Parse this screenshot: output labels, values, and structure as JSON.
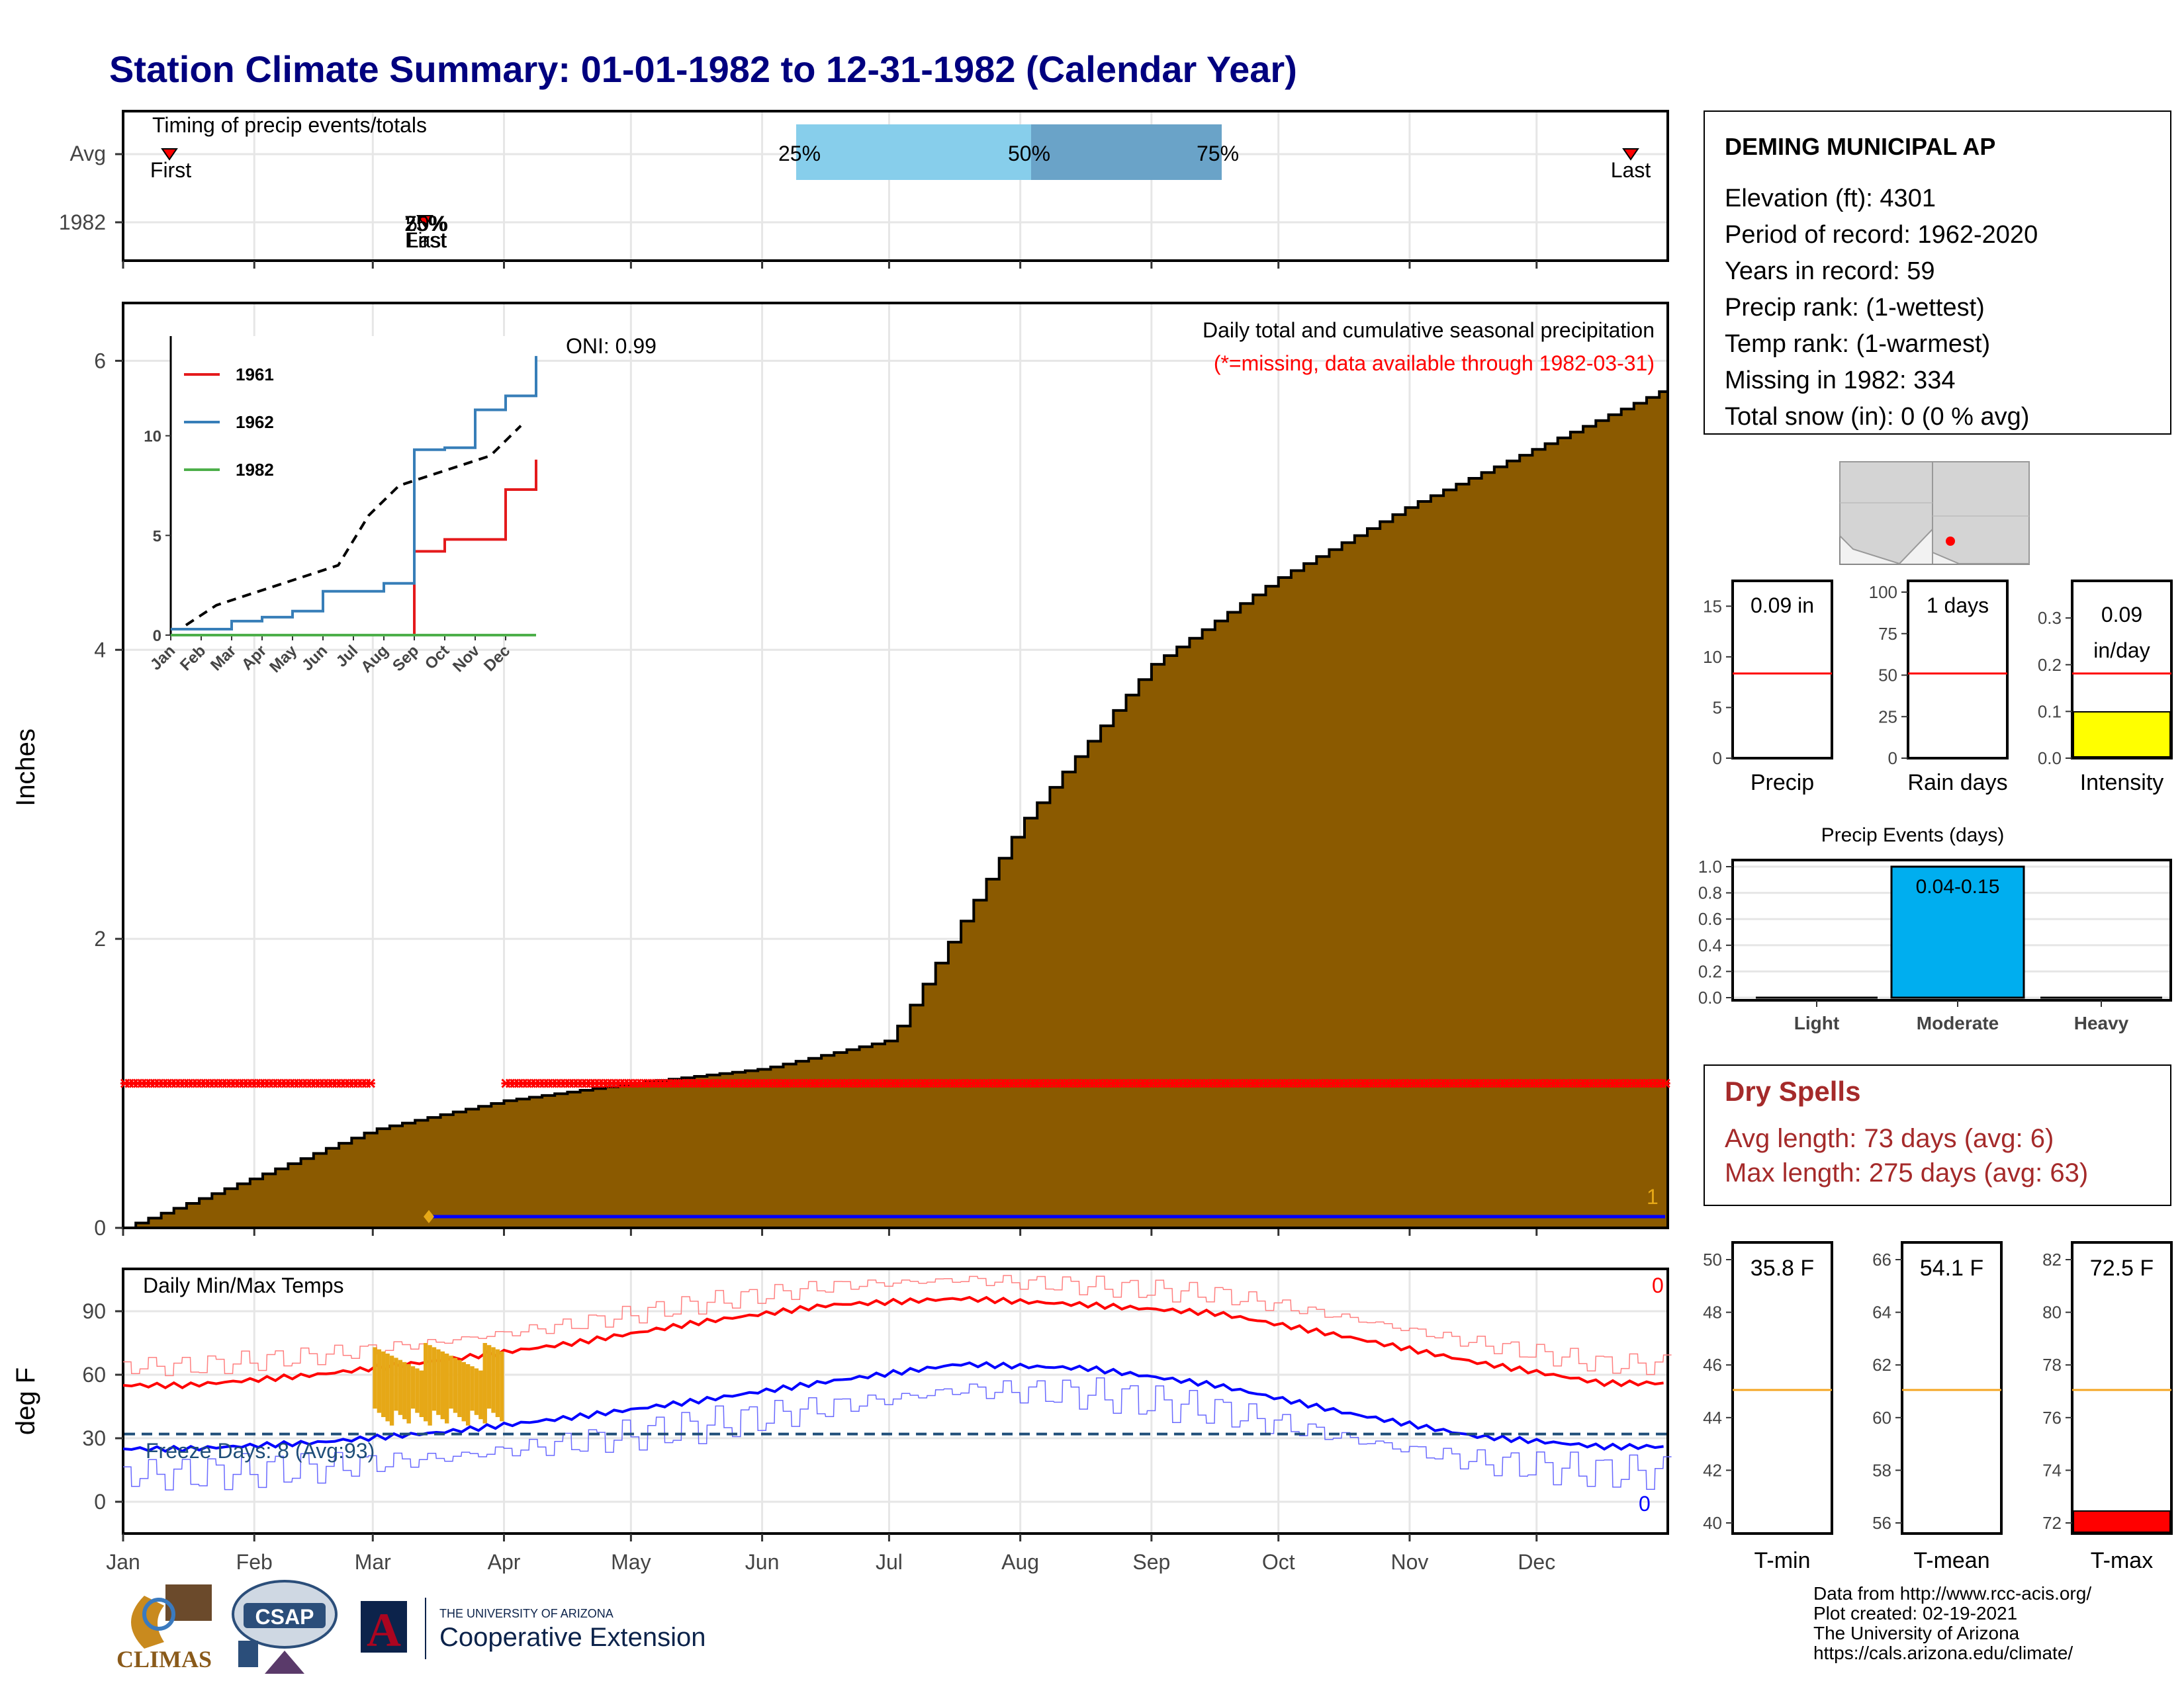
{
  "title": "Station Climate Summary: 01-01-1982 to 12-31-1982 (Calendar Year)",
  "colors": {
    "title": "#00007f",
    "precip_fill": "#8b5a00",
    "missing": "#ff0000",
    "tmax": "#ff0000",
    "tmin": "#0000ff",
    "freeze": "#1f4e79",
    "missing_bars": "#e6a817",
    "q_light": "#87ceeb",
    "q_dark": "#6aa3c8",
    "intensity": "#ffff00",
    "events": "#00aeef",
    "tmax_bar": "#ff0000",
    "dry_spells": "#a52a2a"
  },
  "timing": {
    "caption": "Timing of precip events/totals",
    "rows": [
      "Avg",
      "1982"
    ],
    "avg_first_label": "First",
    "avg_last_label": "Last",
    "pct_labels": [
      "25%",
      "50%",
      "75%"
    ],
    "overlap_labels": [
      "25%",
      "75%",
      "50%",
      "First",
      "Last"
    ]
  },
  "main": {
    "ylabel": "Inches",
    "yticks": [
      "0",
      "2",
      "4",
      "6"
    ],
    "caption": "Daily total and cumulative seasonal precipitation",
    "missing_note": "(*=missing, data available through 1982-03-31)",
    "oni": "ONI: 0.99",
    "count_label": "1"
  },
  "inset": {
    "legend": [
      "1961",
      "1962",
      "1982"
    ],
    "yticks": [
      "0",
      "5",
      "10"
    ],
    "xticks": [
      "Jan",
      "Feb",
      "Mar",
      "Apr",
      "May",
      "Jun",
      "Jul",
      "Aug",
      "Sep",
      "Oct",
      "Nov",
      "Dec"
    ]
  },
  "temps": {
    "ylabel": "deg F",
    "caption": "Daily Min/Max Temps",
    "yticks": [
      "0",
      "30",
      "60",
      "90"
    ],
    "freeze": "Freeze Days: 8 (Avg:93)",
    "max_count": "0",
    "min_count": "0"
  },
  "months": [
    "Jan",
    "Feb",
    "Mar",
    "Apr",
    "May",
    "Jun",
    "Jul",
    "Aug",
    "Sep",
    "Oct",
    "Nov",
    "Dec"
  ],
  "station": {
    "name": "DEMING MUNICIPAL AP",
    "lines": [
      "Elevation (ft): 4301",
      "Period of record: 1962-2020",
      "Years in record: 59",
      "Precip rank:  (1-wettest)",
      "Temp rank:  (1-warmest)",
      "Missing in 1982: 334",
      "Total snow (in): 0 (0 % avg)"
    ]
  },
  "mini": {
    "precip": {
      "label": "Precip",
      "value": "0.09 in",
      "yticks": [
        "0",
        "5",
        "10",
        "15"
      ]
    },
    "raindays": {
      "label": "Rain days",
      "value": "1 days",
      "yticks": [
        "0",
        "25",
        "50",
        "75",
        "100"
      ]
    },
    "intensity": {
      "label": "Intensity",
      "value1": "0.09",
      "value2": "in/day",
      "yticks": [
        "0.0",
        "0.1",
        "0.2",
        "0.3"
      ]
    }
  },
  "events": {
    "title": "Precip Events (days)",
    "categories": [
      "Light",
      "Moderate",
      "Heavy"
    ],
    "values": [
      0,
      1,
      0
    ],
    "bar_label": "0.04-0.15",
    "yticks": [
      "0.0",
      "0.2",
      "0.4",
      "0.6",
      "0.8",
      "1.0"
    ]
  },
  "dry": {
    "title": "Dry Spells",
    "avg": "Avg length: 73 days (avg: 6)",
    "max": "Max length: 275 days (avg: 63)"
  },
  "tbars": {
    "tmin": {
      "label": "T-min",
      "value": "35.8 F",
      "yticks": [
        "40",
        "42",
        "44",
        "46",
        "48",
        "50"
      ]
    },
    "tmean": {
      "label": "T-mean",
      "value": "54.1 F",
      "yticks": [
        "56",
        "58",
        "60",
        "62",
        "64",
        "66"
      ]
    },
    "tmax": {
      "label": "T-max",
      "value": "72.5 F",
      "yticks": [
        "72",
        "74",
        "76",
        "78",
        "80",
        "82"
      ]
    }
  },
  "footer": {
    "lines": [
      "Data from http://www.rcc-acis.org/",
      "Plot created: 02-19-2021",
      "The University of Arizona",
      "https://cals.arizona.edu/climate/"
    ]
  },
  "logos": {
    "climas": "CLIMAS",
    "csap": "CSAP",
    "ua_small": "THE UNIVERSITY OF ARIZONA",
    "ua_big": "Cooperative Extension",
    "ua_letter": "A"
  },
  "chart_data": {
    "type": "area",
    "xlabel": "",
    "ylabel": "Inches",
    "ylim": [
      0,
      6.4
    ],
    "cumulative_avg_precip": {
      "x": [
        "Jan 1",
        "Feb 1",
        "Mar 1",
        "Apr 1",
        "May 1",
        "Jun 1",
        "Jul 1",
        "Aug 1",
        "Sep 1",
        "Oct 1",
        "Nov 1",
        "Dec 1",
        "Dec 31"
      ],
      "values": [
        0,
        0.35,
        0.68,
        0.88,
        1.0,
        1.1,
        1.3,
        2.8,
        3.9,
        4.5,
        5.0,
        5.4,
        5.8
      ]
    },
    "observed_1982_precip": 0.09,
    "temps": {
      "ylim": [
        -15,
        110
      ],
      "avg_max": {
        "x": [
          "Jan",
          "Feb",
          "Mar",
          "Apr",
          "May",
          "Jun",
          "Jul",
          "Aug",
          "Sep",
          "Oct",
          "Nov",
          "Dec"
        ],
        "values": [
          55,
          60,
          67,
          75,
          85,
          93,
          96,
          93,
          89,
          78,
          66,
          56
        ]
      },
      "avg_min": {
        "x": [
          "Jan",
          "Feb",
          "Mar",
          "Apr",
          "May",
          "Jun",
          "Jul",
          "Aug",
          "Sep",
          "Oct",
          "Nov",
          "Dec"
        ],
        "values": [
          25,
          28,
          33,
          40,
          48,
          57,
          65,
          63,
          55,
          42,
          31,
          26
        ]
      },
      "freeze_line": 32
    },
    "inset": {
      "type": "line",
      "ylim": [
        0,
        15
      ],
      "series": [
        {
          "name": "1961",
          "values": [
            0,
            0,
            0,
            0,
            0,
            0,
            0,
            4.2,
            4.8,
            4.8,
            7.3,
            8.8
          ]
        },
        {
          "name": "1962",
          "values": [
            0.3,
            0.7,
            0.9,
            1.2,
            2.2,
            2.2,
            2.6,
            9.3,
            9.4,
            11.3,
            12.0,
            14.0
          ]
        },
        {
          "name": "1982",
          "values": [
            0,
            0,
            0,
            0,
            0,
            0,
            0,
            0,
            0,
            0,
            0,
            0
          ]
        }
      ]
    }
  }
}
